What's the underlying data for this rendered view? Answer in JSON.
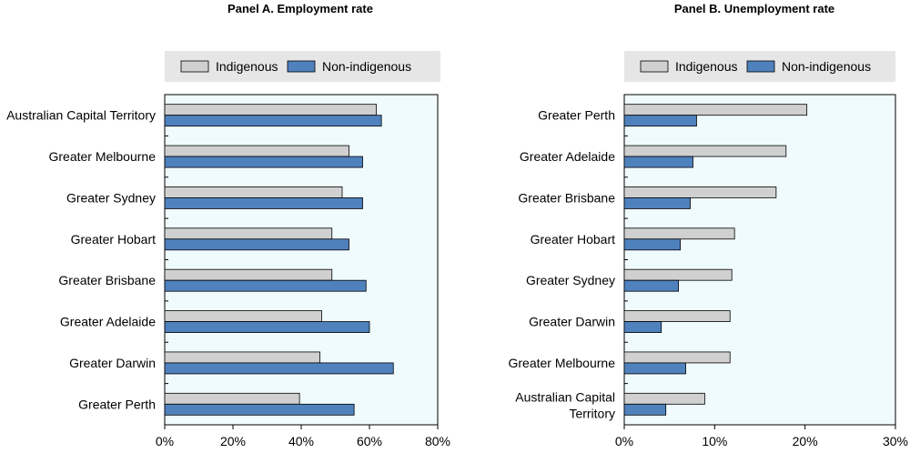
{
  "colors": {
    "indigenous": "#d0d0d0",
    "non_indigenous": "#4f81bd",
    "plot_background": "#f0fbfd",
    "legend_background": "#e6e6e6"
  },
  "chart_data": [
    {
      "type": "bar",
      "orientation": "horizontal",
      "title": "Panel A. Employment rate",
      "legend_position": "top",
      "categories": [
        "Australian Capital Territory",
        "Greater Melbourne",
        "Greater Sydney",
        "Greater Hobart",
        "Greater Brisbane",
        "Greater Adelaide",
        "Greater Darwin",
        "Greater Perth"
      ],
      "series": [
        {
          "name": "Indigenous",
          "color": "#d0d0d0",
          "values": [
            62,
            54,
            52,
            49,
            49,
            46,
            45.5,
            39.5
          ]
        },
        {
          "name": "Non-indigenous",
          "color": "#4f81bd",
          "values": [
            63.5,
            58,
            58,
            54,
            59,
            60,
            67,
            55.5
          ]
        }
      ],
      "xlim": [
        0,
        80
      ],
      "ticks": [
        0,
        20,
        40,
        60,
        80
      ],
      "tick_labels": [
        "0%",
        "20%",
        "40%",
        "60%",
        "80%"
      ],
      "grid": false
    },
    {
      "type": "bar",
      "orientation": "horizontal",
      "title": "Panel B. Unemployment rate",
      "legend_position": "top",
      "categories": [
        "Greater Perth",
        "Greater Adelaide",
        "Greater Brisbane",
        "Greater Hobart",
        "Greater Sydney",
        "Greater Darwin",
        "Greater Melbourne",
        "Australian Capital Territory"
      ],
      "series": [
        {
          "name": "Indigenous",
          "color": "#d0d0d0",
          "values": [
            20.2,
            17.9,
            16.8,
            12.2,
            11.9,
            11.7,
            11.7,
            8.9
          ]
        },
        {
          "name": "Non-indigenous",
          "color": "#4f81bd",
          "values": [
            8,
            7.6,
            7.3,
            6.2,
            6,
            4.1,
            6.8,
            4.6
          ]
        }
      ],
      "xlim": [
        0,
        30
      ],
      "ticks": [
        0,
        10,
        20,
        30
      ],
      "tick_labels": [
        "0%",
        "10%",
        "20%",
        "30%"
      ],
      "grid": false
    }
  ]
}
